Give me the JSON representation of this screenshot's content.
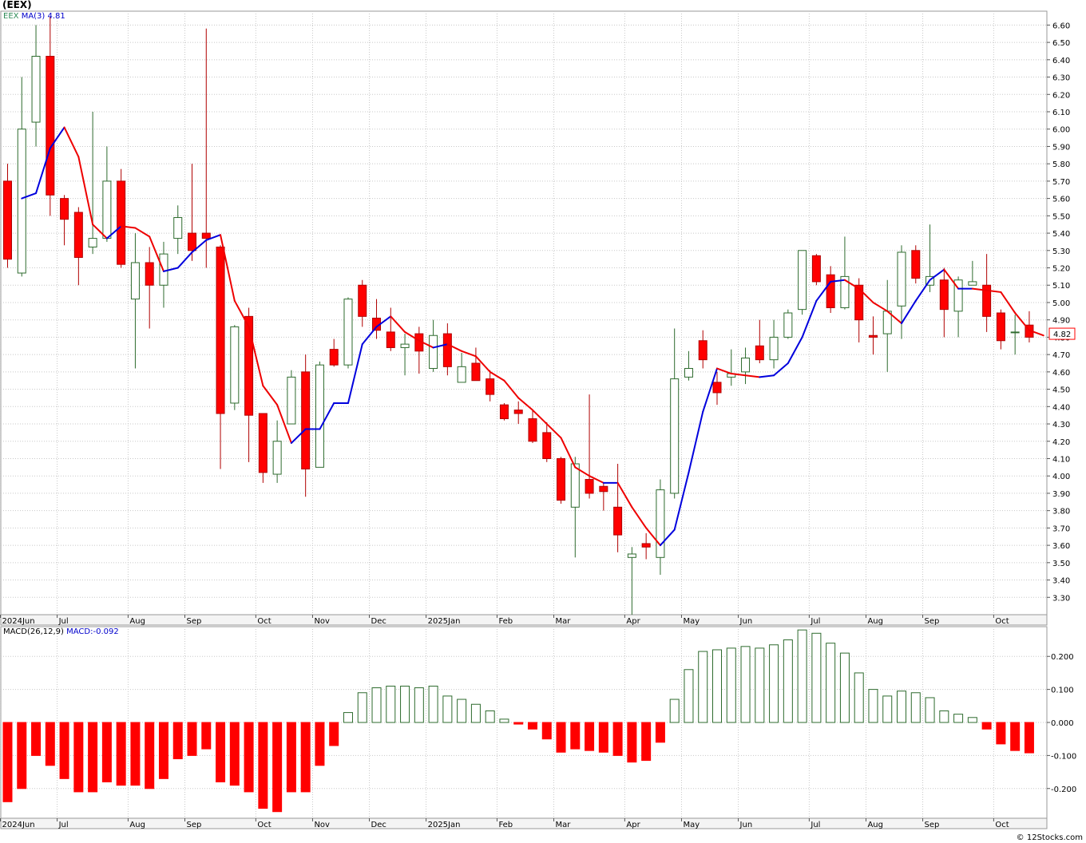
{
  "page": {
    "title": "(EEX)",
    "credit": "© 12Stocks.com"
  },
  "legend": {
    "ticker": "EEX",
    "ma_label": "MA(3)",
    "ma_value": "4.81",
    "macd_label": "MACD(26,12,9)",
    "macd_value": "MACD:-0.092"
  },
  "colors": {
    "up_candle": "#2e6b2e",
    "down_candle": "#ff0000",
    "ma_rising": "#0000dd",
    "ma_falling": "#ee0000",
    "grid": "#c8c8c8",
    "macd_positive": "#2e6b2e",
    "macd_negative": "#ff0000",
    "last_price_label": "#ff0000"
  },
  "chart_data": [
    {
      "type": "candlestick",
      "title": "(EEX)",
      "frequency": "weekly",
      "ylim": [
        3.2,
        6.68
      ],
      "y_ticks": [
        3.3,
        3.4,
        3.5,
        3.6,
        3.7,
        3.8,
        3.9,
        4.0,
        4.1,
        4.2,
        4.3,
        4.4,
        4.5,
        4.6,
        4.7,
        4.8,
        4.9,
        5.0,
        5.1,
        5.2,
        5.3,
        5.4,
        5.5,
        5.6,
        5.7,
        5.8,
        5.9,
        6.0,
        6.1,
        6.2,
        6.3,
        6.4,
        6.5,
        6.6
      ],
      "x_labels": [
        {
          "label": "2024Jun",
          "index": 0
        },
        {
          "label": "Jul",
          "index": 4
        },
        {
          "label": "Aug",
          "index": 9
        },
        {
          "label": "Sep",
          "index": 13
        },
        {
          "label": "Oct",
          "index": 18
        },
        {
          "label": "Nov",
          "index": 22
        },
        {
          "label": "Dec",
          "index": 26
        },
        {
          "label": "2025Jan",
          "index": 30
        },
        {
          "label": "Feb",
          "index": 35
        },
        {
          "label": "Mar",
          "index": 39
        },
        {
          "label": "Apr",
          "index": 44
        },
        {
          "label": "May",
          "index": 48
        },
        {
          "label": "Jun",
          "index": 52
        },
        {
          "label": "Jul",
          "index": 57
        },
        {
          "label": "Aug",
          "index": 61
        },
        {
          "label": "Sep",
          "index": 65
        },
        {
          "label": "Oct",
          "index": 70
        }
      ],
      "last_price_label": "4.82",
      "candles": [
        {
          "o": 5.7,
          "h": 5.8,
          "l": 5.2,
          "c": 5.25
        },
        {
          "o": 5.17,
          "h": 6.3,
          "l": 5.15,
          "c": 6.0
        },
        {
          "o": 6.04,
          "h": 6.6,
          "l": 5.9,
          "c": 6.42
        },
        {
          "o": 6.42,
          "h": 6.65,
          "l": 5.5,
          "c": 5.62
        },
        {
          "o": 5.6,
          "h": 5.62,
          "l": 5.33,
          "c": 5.48
        },
        {
          "o": 5.52,
          "h": 5.55,
          "l": 5.1,
          "c": 5.26
        },
        {
          "o": 5.32,
          "h": 6.1,
          "l": 5.28,
          "c": 5.37
        },
        {
          "o": 5.37,
          "h": 5.9,
          "l": 5.35,
          "c": 5.7
        },
        {
          "o": 5.7,
          "h": 5.77,
          "l": 5.2,
          "c": 5.22
        },
        {
          "o": 5.02,
          "h": 5.4,
          "l": 4.62,
          "c": 5.23
        },
        {
          "o": 5.23,
          "h": 5.32,
          "l": 4.85,
          "c": 5.1
        },
        {
          "o": 5.1,
          "h": 5.35,
          "l": 4.97,
          "c": 5.28
        },
        {
          "o": 5.37,
          "h": 5.56,
          "l": 5.28,
          "c": 5.49
        },
        {
          "o": 5.4,
          "h": 5.8,
          "l": 5.24,
          "c": 5.3
        },
        {
          "o": 5.4,
          "h": 6.58,
          "l": 5.2,
          "c": 5.37
        },
        {
          "o": 5.32,
          "h": 5.33,
          "l": 4.04,
          "c": 4.36
        },
        {
          "o": 4.42,
          "h": 4.87,
          "l": 4.38,
          "c": 4.86
        },
        {
          "o": 4.92,
          "h": 4.97,
          "l": 4.08,
          "c": 4.35
        },
        {
          "o": 4.36,
          "h": 4.36,
          "l": 3.96,
          "c": 4.02
        },
        {
          "o": 4.01,
          "h": 4.32,
          "l": 3.96,
          "c": 4.2
        },
        {
          "o": 4.3,
          "h": 4.61,
          "l": 4.3,
          "c": 4.57
        },
        {
          "o": 4.6,
          "h": 4.7,
          "l": 3.88,
          "c": 4.04
        },
        {
          "o": 4.05,
          "h": 4.66,
          "l": 4.05,
          "c": 4.64
        },
        {
          "o": 4.73,
          "h": 4.79,
          "l": 4.63,
          "c": 4.64
        },
        {
          "o": 4.64,
          "h": 5.03,
          "l": 4.62,
          "c": 5.02
        },
        {
          "o": 5.1,
          "h": 5.13,
          "l": 4.86,
          "c": 4.92
        },
        {
          "o": 4.91,
          "h": 5.02,
          "l": 4.79,
          "c": 4.84
        },
        {
          "o": 4.83,
          "h": 4.97,
          "l": 4.72,
          "c": 4.74
        },
        {
          "o": 4.74,
          "h": 4.82,
          "l": 4.58,
          "c": 4.76
        },
        {
          "o": 4.82,
          "h": 4.86,
          "l": 4.59,
          "c": 4.72
        },
        {
          "o": 4.62,
          "h": 4.9,
          "l": 4.6,
          "c": 4.81
        },
        {
          "o": 4.82,
          "h": 4.88,
          "l": 4.58,
          "c": 4.63
        },
        {
          "o": 4.54,
          "h": 4.71,
          "l": 4.54,
          "c": 4.63
        },
        {
          "o": 4.65,
          "h": 4.74,
          "l": 4.56,
          "c": 4.55
        },
        {
          "o": 4.56,
          "h": 4.61,
          "l": 4.43,
          "c": 4.47
        },
        {
          "o": 4.41,
          "h": 4.42,
          "l": 4.32,
          "c": 4.33
        },
        {
          "o": 4.38,
          "h": 4.43,
          "l": 4.3,
          "c": 4.36
        },
        {
          "o": 4.33,
          "h": 4.38,
          "l": 4.19,
          "c": 4.2
        },
        {
          "o": 4.25,
          "h": 4.31,
          "l": 4.08,
          "c": 4.1
        },
        {
          "o": 4.1,
          "h": 4.11,
          "l": 3.84,
          "c": 3.86
        },
        {
          "o": 3.82,
          "h": 4.11,
          "l": 3.53,
          "c": 4.07
        },
        {
          "o": 3.98,
          "h": 4.47,
          "l": 3.87,
          "c": 3.9
        },
        {
          "o": 3.94,
          "h": 3.96,
          "l": 3.8,
          "c": 3.91
        },
        {
          "o": 3.82,
          "h": 4.07,
          "l": 3.56,
          "c": 3.66
        },
        {
          "o": 3.53,
          "h": 3.59,
          "l": 3.2,
          "c": 3.55
        },
        {
          "o": 3.61,
          "h": 3.67,
          "l": 3.52,
          "c": 3.59
        },
        {
          "o": 3.53,
          "h": 3.98,
          "l": 3.43,
          "c": 3.92
        },
        {
          "o": 3.9,
          "h": 4.85,
          "l": 3.87,
          "c": 4.56
        },
        {
          "o": 4.57,
          "h": 4.72,
          "l": 4.55,
          "c": 4.62
        },
        {
          "o": 4.78,
          "h": 4.84,
          "l": 4.62,
          "c": 4.67
        },
        {
          "o": 4.54,
          "h": 4.6,
          "l": 4.41,
          "c": 4.48
        },
        {
          "o": 4.57,
          "h": 4.73,
          "l": 4.52,
          "c": 4.59
        },
        {
          "o": 4.6,
          "h": 4.74,
          "l": 4.53,
          "c": 4.68
        },
        {
          "o": 4.75,
          "h": 4.9,
          "l": 4.65,
          "c": 4.67
        },
        {
          "o": 4.67,
          "h": 4.9,
          "l": 4.62,
          "c": 4.8
        },
        {
          "o": 4.8,
          "h": 4.96,
          "l": 4.79,
          "c": 4.94
        },
        {
          "o": 4.96,
          "h": 5.3,
          "l": 4.93,
          "c": 5.3
        },
        {
          "o": 5.27,
          "h": 5.28,
          "l": 5.1,
          "c": 5.12
        },
        {
          "o": 5.16,
          "h": 5.21,
          "l": 4.94,
          "c": 4.97
        },
        {
          "o": 4.97,
          "h": 5.38,
          "l": 4.96,
          "c": 5.15
        },
        {
          "o": 5.1,
          "h": 5.14,
          "l": 4.77,
          "c": 4.9
        },
        {
          "o": 4.81,
          "h": 4.92,
          "l": 4.7,
          "c": 4.8
        },
        {
          "o": 4.82,
          "h": 5.13,
          "l": 4.6,
          "c": 4.95
        },
        {
          "o": 4.98,
          "h": 5.33,
          "l": 4.79,
          "c": 5.29
        },
        {
          "o": 5.3,
          "h": 5.33,
          "l": 5.11,
          "c": 5.14
        },
        {
          "o": 5.1,
          "h": 5.45,
          "l": 5.06,
          "c": 5.15
        },
        {
          "o": 5.13,
          "h": 5.2,
          "l": 4.8,
          "c": 4.96
        },
        {
          "o": 4.95,
          "h": 5.15,
          "l": 4.8,
          "c": 5.13
        },
        {
          "o": 5.1,
          "h": 5.24,
          "l": 5.1,
          "c": 5.12
        },
        {
          "o": 5.1,
          "h": 5.28,
          "l": 4.83,
          "c": 4.92
        },
        {
          "o": 4.94,
          "h": 4.96,
          "l": 4.73,
          "c": 4.78
        },
        {
          "o": 4.83,
          "h": 4.93,
          "l": 4.7,
          "c": 4.83
        },
        {
          "o": 4.87,
          "h": 4.95,
          "l": 4.77,
          "c": 4.8
        }
      ],
      "ma3": [
        5.6,
        5.63,
        5.89,
        6.01,
        5.84,
        5.45,
        5.37,
        5.44,
        5.43,
        5.38,
        5.18,
        5.2,
        5.29,
        5.36,
        5.39,
        5.01,
        4.86,
        4.52,
        4.41,
        4.19,
        4.27,
        4.27,
        4.42,
        4.42,
        4.76,
        4.86,
        4.92,
        4.83,
        4.78,
        4.74,
        4.76,
        4.72,
        4.69,
        4.6,
        4.55,
        4.45,
        4.38,
        4.3,
        4.22,
        4.05,
        4.0,
        3.96,
        3.96,
        3.82,
        3.7,
        3.6,
        3.69,
        4.02,
        4.37,
        4.62,
        4.59,
        4.58,
        4.57,
        4.58,
        4.65,
        4.8,
        5.01,
        5.12,
        5.13,
        5.08,
        5.0,
        4.95,
        4.88,
        5.01,
        5.13,
        5.19,
        5.08,
        5.08,
        5.07,
        5.06,
        4.94,
        4.84,
        4.81
      ]
    },
    {
      "type": "bar",
      "title": "MACD(26,12,9)",
      "last_value": "MACD:-0.092",
      "ylim": [
        -0.29,
        0.29
      ],
      "y_ticks": [
        -0.2,
        -0.1,
        0.0,
        0.1,
        0.2
      ],
      "y_tick_labels": [
        "-0.200",
        "-0.100",
        "0.000",
        "0.100",
        "0.200"
      ],
      "x_labels": [
        {
          "label": "2024Jun",
          "index": 0
        },
        {
          "label": "Jul",
          "index": 4
        },
        {
          "label": "Aug",
          "index": 9
        },
        {
          "label": "Sep",
          "index": 13
        },
        {
          "label": "Oct",
          "index": 18
        },
        {
          "label": "Nov",
          "index": 22
        },
        {
          "label": "Dec",
          "index": 26
        },
        {
          "label": "2025Jan",
          "index": 30
        },
        {
          "label": "Feb",
          "index": 35
        },
        {
          "label": "Mar",
          "index": 39
        },
        {
          "label": "Apr",
          "index": 44
        },
        {
          "label": "May",
          "index": 48
        },
        {
          "label": "Jun",
          "index": 52
        },
        {
          "label": "Jul",
          "index": 57
        },
        {
          "label": "Aug",
          "index": 61
        },
        {
          "label": "Sep",
          "index": 65
        },
        {
          "label": "Oct",
          "index": 70
        }
      ],
      "values": [
        -0.24,
        -0.2,
        -0.1,
        -0.13,
        -0.17,
        -0.21,
        -0.21,
        -0.18,
        -0.19,
        -0.19,
        -0.2,
        -0.17,
        -0.11,
        -0.1,
        -0.08,
        -0.18,
        -0.19,
        -0.21,
        -0.26,
        -0.27,
        -0.21,
        -0.21,
        -0.13,
        -0.07,
        0.03,
        0.09,
        0.105,
        0.11,
        0.11,
        0.105,
        0.11,
        0.08,
        0.07,
        0.055,
        0.035,
        0.01,
        -0.005,
        -0.02,
        -0.05,
        -0.09,
        -0.08,
        -0.085,
        -0.09,
        -0.1,
        -0.12,
        -0.115,
        -0.06,
        0.07,
        0.16,
        0.215,
        0.22,
        0.225,
        0.23,
        0.225,
        0.235,
        0.25,
        0.28,
        0.27,
        0.24,
        0.21,
        0.15,
        0.1,
        0.08,
        0.095,
        0.09,
        0.075,
        0.035,
        0.025,
        0.015,
        -0.02,
        -0.065,
        -0.085,
        -0.092
      ]
    }
  ]
}
